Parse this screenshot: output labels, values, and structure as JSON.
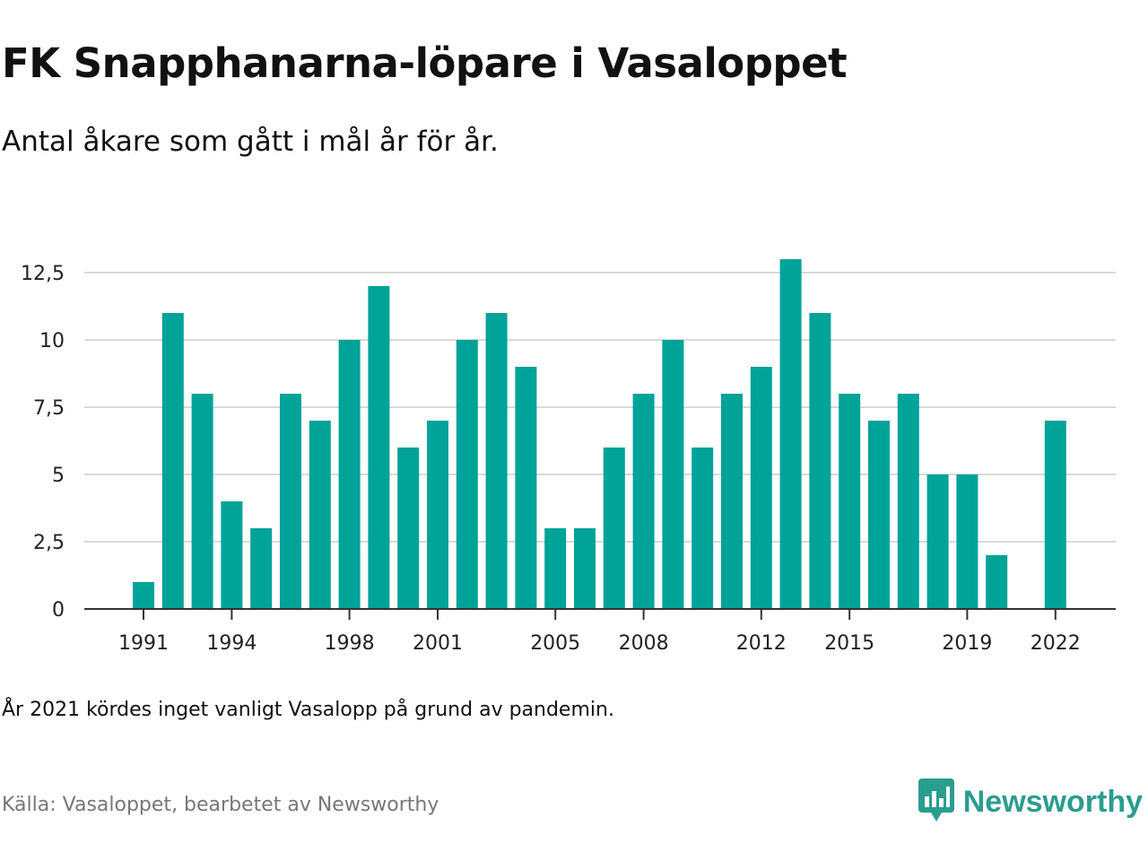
{
  "header": {
    "title": "FK Snapphanarna-löpare i Vasaloppet",
    "subtitle": "Antal åkare som gått i mål år för år."
  },
  "footer": {
    "note": "År 2021 kördes inget vanligt Vasalopp på grund av pandemin.",
    "source": "Källa: Vasaloppet, bearbetet av Newsworthy",
    "brand": "Newsworthy"
  },
  "colors": {
    "bar": "#00a398",
    "brand": "#2a9d8f",
    "grid": "#d9d9d9",
    "axis": "#333333"
  },
  "chart_data": {
    "type": "bar",
    "categories": [
      1991,
      1992,
      1993,
      1994,
      1995,
      1996,
      1997,
      1998,
      1999,
      2000,
      2001,
      2002,
      2003,
      2004,
      2005,
      2006,
      2007,
      2008,
      2009,
      2010,
      2011,
      2012,
      2013,
      2014,
      2015,
      2016,
      2017,
      2018,
      2019,
      2020,
      2021,
      2022
    ],
    "values": [
      1,
      11,
      8,
      4,
      3,
      8,
      7,
      10,
      12,
      6,
      7,
      10,
      11,
      9,
      3,
      3,
      6,
      8,
      10,
      6,
      8,
      9,
      13,
      11,
      8,
      7,
      8,
      5,
      5,
      2,
      0,
      7
    ],
    "x_tick_labels": [
      "1991",
      "1994",
      "1998",
      "2001",
      "2005",
      "2008",
      "2012",
      "2015",
      "2019",
      "2022"
    ],
    "y_ticks": [
      0,
      2.5,
      5,
      7.5,
      10,
      12.5
    ],
    "y_tick_labels": [
      "0",
      "2,5",
      "5",
      "7,5",
      "10",
      "12,5"
    ],
    "ylim": [
      0,
      13
    ],
    "grid": true,
    "legend": "none"
  }
}
